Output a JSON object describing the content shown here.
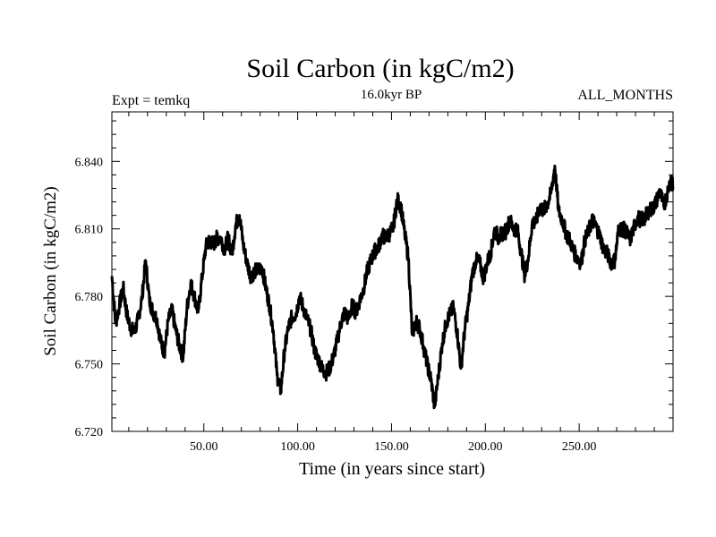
{
  "header": {
    "title": "Soil Carbon (in kgC/m2)",
    "left_note": "Expt = temkq",
    "center_note": "16.0kyr BP",
    "right_note": "ALL_MONTHS"
  },
  "chart_data": {
    "type": "line",
    "title": "Soil Carbon (in kgC/m2)",
    "xlabel": "Time (in years since start)",
    "ylabel": "Soil Carbon (in kgC/m2)",
    "xlim": [
      1,
      300
    ],
    "ylim": [
      6.72,
      6.862
    ],
    "x_ticks": [
      50,
      100,
      150,
      200,
      250
    ],
    "x_tick_labels": [
      "50.00",
      "100.00",
      "150.00",
      "200.00",
      "250.00"
    ],
    "y_ticks": [
      6.72,
      6.75,
      6.78,
      6.81,
      6.84
    ],
    "y_tick_labels": [
      "6.720",
      "6.750",
      "6.780",
      "6.810",
      "6.840"
    ],
    "grid": false,
    "color": "#000000",
    "series": [
      {
        "x": [
          1,
          3,
          5,
          7,
          9,
          11,
          13,
          15,
          17,
          19,
          21,
          23,
          25,
          27,
          29,
          31,
          33,
          35,
          37,
          39,
          41,
          43,
          45,
          47,
          49,
          51,
          53,
          55,
          57,
          59,
          61,
          63,
          65,
          67,
          69,
          71,
          73,
          75,
          77,
          79,
          81,
          83,
          85,
          87,
          89,
          91,
          93,
          95,
          97,
          99,
          101,
          103,
          105,
          107,
          109,
          111,
          113,
          115,
          117,
          119,
          121,
          123,
          125,
          127,
          129,
          131,
          133,
          135,
          137,
          139,
          141,
          143,
          145,
          147,
          149,
          151,
          153,
          155,
          157,
          159,
          161,
          163,
          165,
          167,
          169,
          171,
          173,
          175,
          177,
          179,
          181,
          183,
          185,
          187,
          189,
          191,
          193,
          195,
          197,
          199,
          201,
          203,
          205,
          207,
          209,
          211,
          213,
          215,
          217,
          219,
          221,
          223,
          225,
          227,
          229,
          231,
          233,
          235,
          237,
          239,
          241,
          243,
          245,
          247,
          249,
          251,
          253,
          255,
          257,
          259,
          261,
          263,
          265,
          267,
          269,
          271,
          273,
          275,
          277,
          279,
          281,
          283,
          285,
          287,
          289,
          291,
          293,
          295,
          297,
          299,
          300
        ],
        "y": [
          6.789,
          6.768,
          6.776,
          6.784,
          6.772,
          6.766,
          6.764,
          6.77,
          6.779,
          6.796,
          6.778,
          6.773,
          6.77,
          6.76,
          6.755,
          6.769,
          6.774,
          6.765,
          6.758,
          6.753,
          6.775,
          6.786,
          6.78,
          6.773,
          6.788,
          6.802,
          6.805,
          6.803,
          6.806,
          6.806,
          6.801,
          6.806,
          6.799,
          6.812,
          6.816,
          6.803,
          6.795,
          6.789,
          6.791,
          6.792,
          6.793,
          6.784,
          6.776,
          6.765,
          6.745,
          6.738,
          6.756,
          6.766,
          6.771,
          6.772,
          6.78,
          6.775,
          6.77,
          6.765,
          6.756,
          6.752,
          6.748,
          6.746,
          6.748,
          6.753,
          6.76,
          6.768,
          6.773,
          6.77,
          6.776,
          6.773,
          6.778,
          6.783,
          6.791,
          6.796,
          6.8,
          6.802,
          6.807,
          6.806,
          6.808,
          6.811,
          6.823,
          6.82,
          6.808,
          6.797,
          6.763,
          6.769,
          6.766,
          6.758,
          6.75,
          6.743,
          6.731,
          6.745,
          6.759,
          6.768,
          6.772,
          6.775,
          6.764,
          6.748,
          6.765,
          6.776,
          6.79,
          6.796,
          6.795,
          6.788,
          6.795,
          6.8,
          6.81,
          6.806,
          6.808,
          6.809,
          6.814,
          6.81,
          6.81,
          6.8,
          6.789,
          6.798,
          6.813,
          6.813,
          6.82,
          6.818,
          6.821,
          6.826,
          6.838,
          6.818,
          6.814,
          6.808,
          6.805,
          6.8,
          6.797,
          6.795,
          6.805,
          6.809,
          6.814,
          6.811,
          6.807,
          6.801,
          6.799,
          6.795,
          6.796,
          6.81,
          6.81,
          6.809,
          6.805,
          6.81,
          6.815,
          6.814,
          6.815,
          6.818,
          6.819,
          6.822,
          6.827,
          6.82,
          6.826,
          6.833,
          6.828
        ]
      }
    ]
  }
}
